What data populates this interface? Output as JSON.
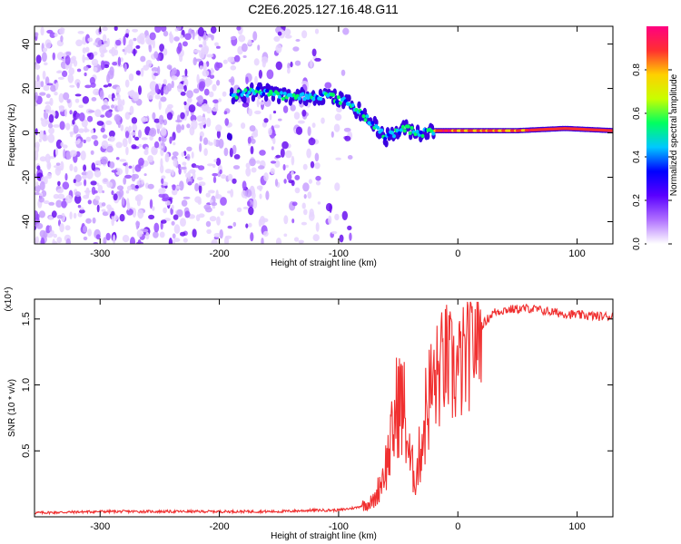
{
  "title": "C2E6.2025.127.16.48.G11",
  "chart_data": [
    {
      "type": "heatmap",
      "xlabel": "Height of straight line (km)",
      "ylabel": "Frequency (Hz)",
      "xlim": [
        -355,
        130
      ],
      "ylim": [
        -50,
        48
      ],
      "x_ticks": [
        -300,
        -200,
        -100,
        0,
        100
      ],
      "x_tick_labels": [
        "-300",
        "-200",
        "-100",
        "0",
        "100"
      ],
      "y_ticks": [
        -40,
        -20,
        0,
        20,
        40
      ],
      "y_tick_labels": [
        "-40",
        "-20",
        "0",
        "20",
        "40"
      ],
      "colorbar": {
        "label": "Normalized spectral amplitude",
        "range": [
          0,
          1
        ],
        "ticks": [
          0.0,
          0.2,
          0.4,
          0.6,
          0.8
        ],
        "tick_labels": [
          "0.0",
          "0.2",
          "0.4",
          "0.6",
          "0.8"
        ],
        "colors": [
          "#ffffff",
          "#b070ff",
          "#5a00ff",
          "#0000ff",
          "#00c8ff",
          "#00ff60",
          "#c8ff00",
          "#ffd000",
          "#ff3030",
          "#ff0080"
        ]
      },
      "ridge": {
        "description_points": [
          {
            "x": -190,
            "freq": 17
          },
          {
            "x": -165,
            "freq": 19
          },
          {
            "x": -140,
            "freq": 16
          },
          {
            "x": -110,
            "freq": 17
          },
          {
            "x": -90,
            "freq": 13
          },
          {
            "x": -75,
            "freq": 6
          },
          {
            "x": -60,
            "freq": -2
          },
          {
            "x": -45,
            "freq": 2
          },
          {
            "x": -30,
            "freq": 0
          },
          {
            "x": -20,
            "freq": 1
          },
          {
            "x": 0,
            "freq": 1
          },
          {
            "x": 50,
            "freq": 1
          },
          {
            "x": 90,
            "freq": 2
          },
          {
            "x": 130,
            "freq": 1
          }
        ]
      },
      "grid": false
    },
    {
      "type": "line",
      "xlabel": "Height of straight line (km)",
      "ylabel": "SNR (10 * v/v)",
      "y_multiplier": "(x10⁴)",
      "xlim": [
        -355,
        130
      ],
      "ylim": [
        0,
        1.65
      ],
      "x_ticks": [
        -300,
        -200,
        -100,
        0,
        100
      ],
      "x_tick_labels": [
        "-300",
        "-200",
        "-100",
        "0",
        "100"
      ],
      "y_ticks": [
        0.5,
        1.0,
        1.5
      ],
      "y_tick_labels": [
        "0.5",
        "1.0",
        "1.5"
      ],
      "line_color": "#f03030",
      "series": [
        {
          "x": [
            -355,
            -300,
            -250,
            -200,
            -150,
            -120,
            -100,
            -85,
            -70,
            -60,
            -55,
            -50,
            -45,
            -40,
            -35,
            -30,
            -25,
            -20,
            -15,
            -10,
            -5,
            0,
            10,
            20,
            30,
            40,
            60,
            80,
            100,
            120,
            130
          ],
          "y": [
            0.03,
            0.04,
            0.04,
            0.04,
            0.04,
            0.05,
            0.05,
            0.07,
            0.12,
            0.4,
            0.6,
            0.9,
            0.8,
            0.4,
            0.3,
            0.6,
            0.9,
            1.0,
            1.1,
            1.2,
            1.1,
            1.1,
            1.25,
            1.45,
            1.55,
            1.57,
            1.58,
            1.55,
            1.53,
            1.52,
            1.52
          ]
        }
      ],
      "grid": false
    }
  ]
}
